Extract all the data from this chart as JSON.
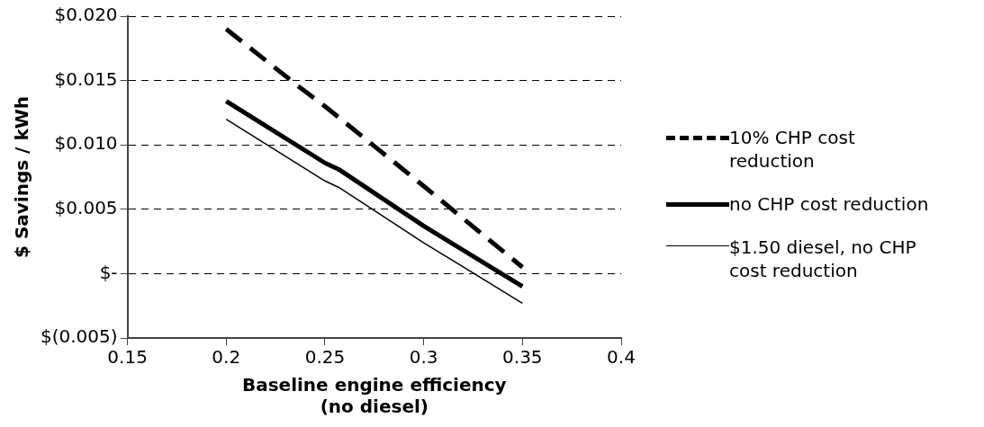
{
  "chart_data": {
    "type": "line",
    "xlabel": "Baseline engine efficiency\n(no diesel)",
    "ylabel": "$ Savings / kWh",
    "xlim": [
      0.15,
      0.4
    ],
    "xticks": [
      0.15,
      0.2,
      0.25,
      0.3,
      0.35,
      0.4
    ],
    "ylim": [
      -0.005,
      0.02
    ],
    "yticks": [
      {
        "value": -0.005,
        "label": "$(0.005)"
      },
      {
        "value": 0,
        "label": "$-"
      },
      {
        "value": 0.005,
        "label": "$0.005"
      },
      {
        "value": 0.01,
        "label": "$0.010"
      },
      {
        "value": 0.015,
        "label": "$0.015"
      },
      {
        "value": 0.02,
        "label": "$0.020"
      }
    ],
    "grid": "y",
    "legend": "right",
    "marker": "none",
    "series": [
      {
        "name": "10% CHP cost reduction",
        "color": "#000000",
        "line_style": "dashed",
        "x": [
          0.2,
          0.237,
          0.25,
          0.3,
          0.35
        ],
        "values": [
          0.019,
          0.0145,
          0.013,
          0.0068,
          0.0005
        ]
      },
      {
        "name": "no CHP cost reduction",
        "color": "#000000",
        "line_style": "solid",
        "x": [
          0.2,
          0.25,
          0.257,
          0.3,
          0.35
        ],
        "values": [
          0.0134,
          0.0086,
          0.0081,
          0.0037,
          -0.001
        ]
      },
      {
        "name": "$1.50 diesel, no CHP cost reduction",
        "color": "#000000",
        "line_style": "solid",
        "x": [
          0.2,
          0.25,
          0.257,
          0.3,
          0.35
        ],
        "values": [
          0.012,
          0.0072,
          0.0067,
          0.0024,
          -0.0023
        ]
      }
    ]
  }
}
